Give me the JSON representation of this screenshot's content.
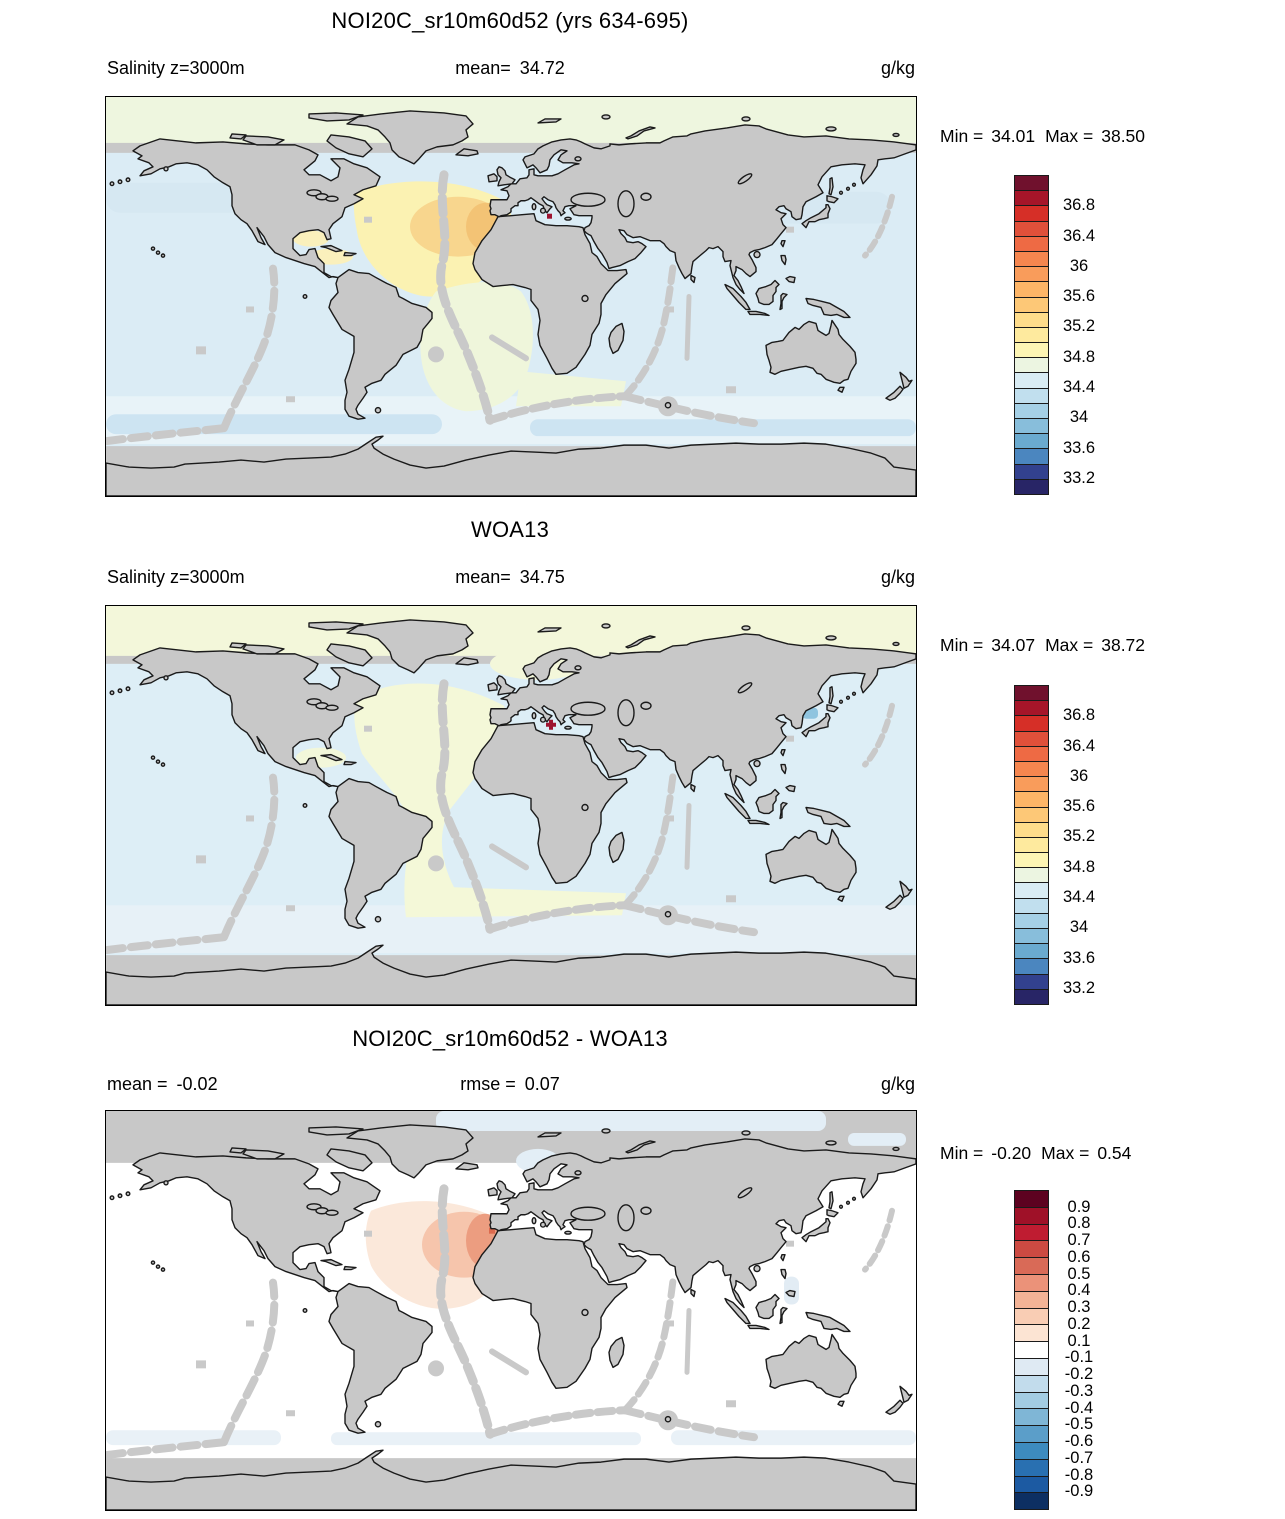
{
  "map_style": {
    "land_fill": "#c8c8c8",
    "coast_color": "#1a1a1a",
    "shallow_fill": "#c8c8c8",
    "ridge_fill": "#c9c9c9"
  },
  "panels": [
    {
      "title": "NOI20C_sr10m60d52 (yrs 634-695)",
      "sub_left_label": "Salinity z=3000m",
      "sub_left_value": "",
      "sub_center_label": "mean=",
      "sub_center_value": "34.72",
      "unit": "g/kg",
      "min_label": "Min =",
      "min_value": "34.01",
      "max_label": "Max =",
      "max_value": "38.50",
      "colorbar": {
        "cells": [
          "#70112d",
          "#a61529",
          "#d62f27",
          "#e0503a",
          "#ee6a44",
          "#f5864f",
          "#f99c5b",
          "#fdb567",
          "#fdc877",
          "#fedc8b",
          "#feea9e",
          "#fdf5b4",
          "#ecf5e1",
          "#d9ecf4",
          "#c1dfee",
          "#a5d0e6",
          "#88bedb",
          "#6aaacf",
          "#4b86bf",
          "#32418e",
          "#282566"
        ],
        "ticks": [
          {
            "label": "36.8",
            "b": 2
          },
          {
            "label": "36.4",
            "b": 4
          },
          {
            "label": "36",
            "b": 6
          },
          {
            "label": "35.6",
            "b": 8
          },
          {
            "label": "35.2",
            "b": 10
          },
          {
            "label": "34.8",
            "b": 12
          },
          {
            "label": "34.4",
            "b": 14
          },
          {
            "label": "34",
            "b": 16
          },
          {
            "label": "33.6",
            "b": 18
          },
          {
            "label": "33.2",
            "b": 20
          }
        ]
      },
      "map": {
        "fills": {
          "arctic": "#eef6df",
          "ocean": "#dbecf5",
          "atl_yellow": "#fbf2b2",
          "gulf_yellow": "#faf0bc",
          "amber_mid": "#f8d68e",
          "amber_core": "#f3c375",
          "satl_green": "#eff6db",
          "southern": "#e8f3f8",
          "polar_band": "#cde4f2",
          "npac_band": "#d6e8f2",
          "med_dot": "#9e1430"
        }
      }
    },
    {
      "title": "WOA13",
      "sub_left_label": "Salinity z=3000m",
      "sub_left_value": "",
      "sub_center_label": "mean=",
      "sub_center_value": "34.75",
      "unit": "g/kg",
      "min_label": "Min =",
      "min_value": "34.07",
      "max_label": "Max =",
      "max_value": "38.72",
      "colorbar": {
        "cells": [
          "#70112d",
          "#a61529",
          "#d62f27",
          "#e0503a",
          "#ee6a44",
          "#f5864f",
          "#f99c5b",
          "#fdb567",
          "#fdc877",
          "#fedc8b",
          "#feea9e",
          "#fdf5b4",
          "#ecf5e1",
          "#d9ecf4",
          "#c1dfee",
          "#a5d0e6",
          "#88bedb",
          "#6aaacf",
          "#4b86bf",
          "#32418e",
          "#282566"
        ],
        "ticks": [
          {
            "label": "36.8",
            "b": 2
          },
          {
            "label": "36.4",
            "b": 4
          },
          {
            "label": "36",
            "b": 6
          },
          {
            "label": "35.6",
            "b": 8
          },
          {
            "label": "35.2",
            "b": 10
          },
          {
            "label": "34.8",
            "b": 12
          },
          {
            "label": "34.4",
            "b": 14
          },
          {
            "label": "34",
            "b": 16
          },
          {
            "label": "33.6",
            "b": 18
          },
          {
            "label": "33.2",
            "b": 20
          }
        ]
      },
      "map": {
        "fills": {
          "arctic": "#f3f7da",
          "ocean": "#ddeef6",
          "atl_green": "#f4f8d8",
          "carib_green": "#f2f7da",
          "nordic_green": "#f3f7da",
          "southern": "#e7f1f7",
          "japan_blue": "#8fc4df",
          "med_dot": "#9e1430"
        }
      }
    },
    {
      "title": "NOI20C_sr10m60d52 - WOA13",
      "sub_left_label": "mean =",
      "sub_left_value": "-0.02",
      "sub_center_label": "rmse =",
      "sub_center_value": "0.07",
      "unit": "g/kg",
      "min_label": "Min =",
      "min_value": "-0.20",
      "max_label": "Max =",
      "max_value": "0.54",
      "colorbar": {
        "cells": [
          "#5d0220",
          "#9f1128",
          "#bf1c31",
          "#cc4a42",
          "#d96a57",
          "#eb9279",
          "#f3b396",
          "#f9cdb4",
          "#fce4d3",
          "#ffffff",
          "#dfeaf3",
          "#c2dcec",
          "#a3cce2",
          "#7fb6d6",
          "#5b9ec9",
          "#3d8bbf",
          "#2970b1",
          "#1c5aa2",
          "#0d2f62"
        ],
        "ticks": [
          {
            "label": "0.9",
            "b": 1
          },
          {
            "label": "0.8",
            "b": 2
          },
          {
            "label": "0.7",
            "b": 3
          },
          {
            "label": "0.6",
            "b": 4
          },
          {
            "label": "0.5",
            "b": 5
          },
          {
            "label": "0.4",
            "b": 6
          },
          {
            "label": "0.3",
            "b": 7
          },
          {
            "label": "0.2",
            "b": 8
          },
          {
            "label": "0.1",
            "b": 9
          },
          {
            "label": "-0.1",
            "b": 10
          },
          {
            "label": "-0.2",
            "b": 11
          },
          {
            "label": "-0.3",
            "b": 12
          },
          {
            "label": "-0.4",
            "b": 13
          },
          {
            "label": "-0.5",
            "b": 14
          },
          {
            "label": "-0.6",
            "b": 15
          },
          {
            "label": "-0.7",
            "b": 16
          },
          {
            "label": "-0.8",
            "b": 17
          },
          {
            "label": "-0.9",
            "b": 18
          }
        ]
      },
      "map": {
        "fills": {
          "ocean": "#ffffff",
          "arctic_blue": "#e3eef6",
          "peach_outer": "#fbe8da",
          "salmon_mid": "#f6c5ac",
          "salmon_core": "#ec9d80",
          "red_spot": "#dc6a4e",
          "south_band": "#e9f1f7",
          "phil_blue": "#e2ecf4"
        }
      }
    }
  ],
  "chart_data": [
    {
      "type": "heatmap",
      "title": "NOI20C_sr10m60d52 (yrs 634-695)",
      "subtitle": "Salinity z=3000m",
      "units": "g/kg",
      "stats": {
        "mean": 34.72,
        "min": 34.01,
        "max": 38.5
      },
      "colorbar_range": [
        33.0,
        37.2
      ],
      "colorbar_step": 0.2,
      "tick_labels": [
        36.8,
        36.4,
        36,
        35.6,
        35.2,
        34.8,
        34.4,
        34,
        33.6,
        33.2
      ],
      "description": "Global map of salinity at 3000 m depth from model; North Atlantic ~35.0-35.8 (yellow/amber near Gibraltar outflow), Pacific and Indian ~34.6-34.7 (pale blue), Southern Ocean band ~34.6, shallow areas masked gray"
    },
    {
      "type": "heatmap",
      "title": "WOA13",
      "subtitle": "Salinity z=3000m",
      "units": "g/kg",
      "stats": {
        "mean": 34.75,
        "min": 34.07,
        "max": 38.72
      },
      "colorbar_range": [
        33.0,
        37.2
      ],
      "colorbar_step": 0.2,
      "tick_labels": [
        36.8,
        36.4,
        36,
        35.6,
        35.2,
        34.8,
        34.4,
        34,
        33.6,
        33.2
      ],
      "description": "WOA13 climatology at 3000 m; Atlantic ~34.9 (pale yellow-green), Pacific/Indian ~34.7 (pale blue), Mediterranean grid cell >37 (dark red cross)"
    },
    {
      "type": "heatmap",
      "title": "NOI20C_sr10m60d52 - WOA13",
      "units": "g/kg",
      "stats": {
        "mean": -0.02,
        "rmse": 0.07,
        "min": -0.2,
        "max": 0.54
      },
      "colorbar_range": [
        -1.0,
        1.0
      ],
      "colorbar_step": 0.1,
      "tick_labels": [
        0.9,
        0.8,
        0.7,
        0.6,
        0.5,
        0.4,
        0.3,
        0.2,
        0.1,
        -0.1,
        -0.2,
        -0.3,
        -0.4,
        -0.5,
        -0.6,
        -0.7,
        -0.8,
        -0.9
      ],
      "description": "Difference map mostly within ±0.1 (white); positive anomaly up to ~0.5 in subtropical North Atlantic near Gibraltar (peach/salmon), slight negative patches in Arctic and around 60S"
    }
  ]
}
